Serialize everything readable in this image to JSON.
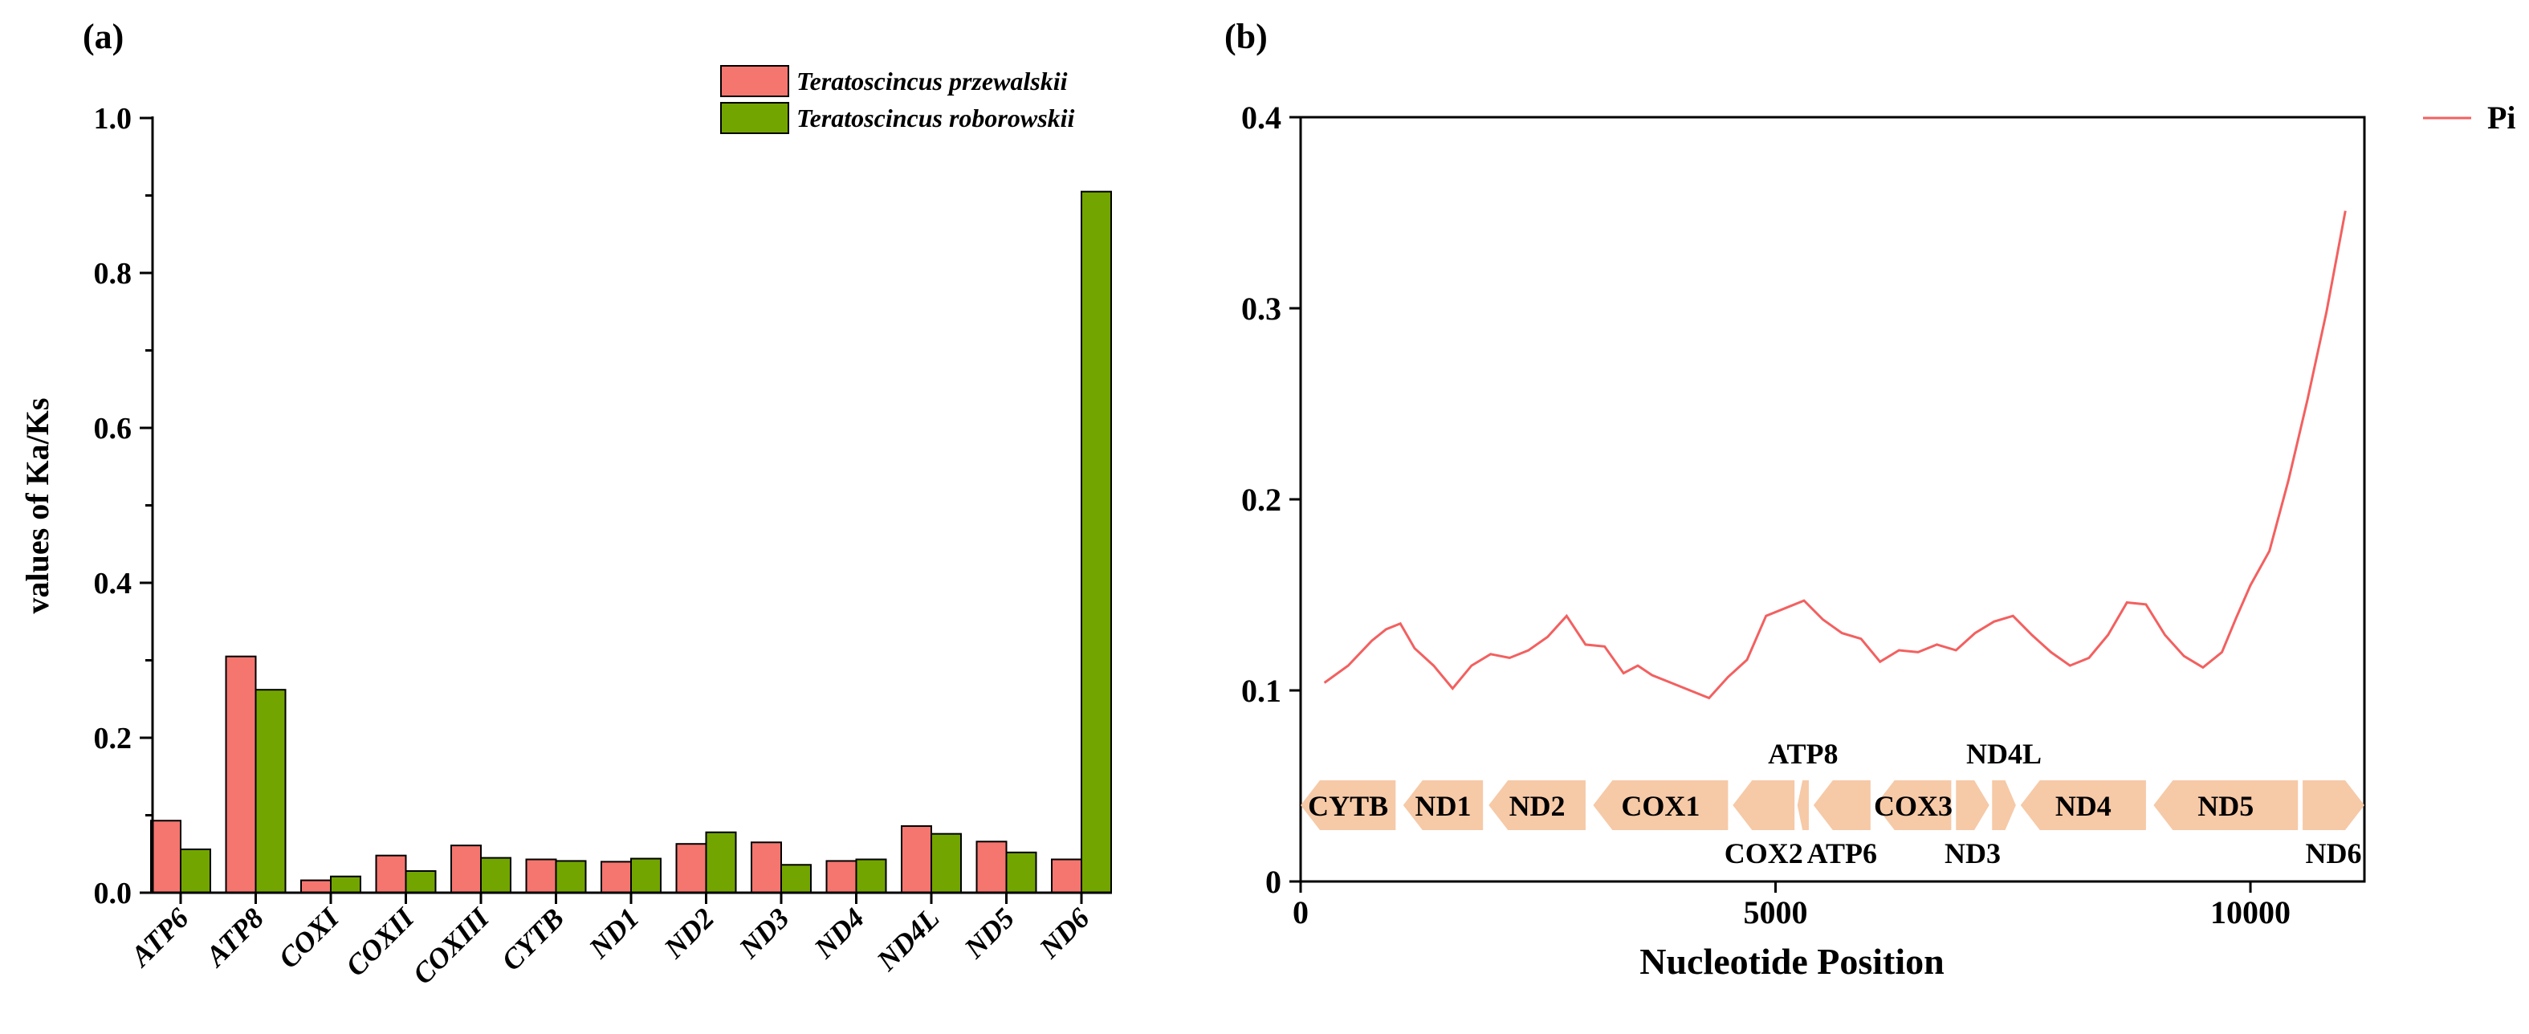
{
  "panel_a_label": "(a)",
  "panel_b_label": "(b)",
  "colors": {
    "series_1": "#F4766F",
    "series_2": "#73A500",
    "pi_line": "#F36060",
    "gene_fill": "#F6C9A7",
    "axis": "#000000"
  },
  "chart_data": [
    {
      "type": "bar",
      "panel": "a",
      "title": "",
      "xlabel": "",
      "ylabel": "values of Ka/Ks",
      "ylim": [
        0,
        1.0
      ],
      "yticks": [
        0.0,
        0.2,
        0.4,
        0.6,
        0.8,
        1.0
      ],
      "ytick_labels": [
        "0.0",
        "0.2",
        "0.4",
        "0.6",
        "0.8",
        "1.0"
      ],
      "categories": [
        "ATP6",
        "ATP8",
        "COXI",
        "COXII",
        "COXIII",
        "CYTB",
        "ND1",
        "ND2",
        "ND3",
        "ND4",
        "ND4L",
        "ND5",
        "ND6"
      ],
      "series": [
        {
          "name": "Teratoscincus przewalskii",
          "color": "#F4766F",
          "values": [
            0.093,
            0.305,
            0.016,
            0.048,
            0.061,
            0.043,
            0.04,
            0.063,
            0.065,
            0.041,
            0.086,
            0.066,
            0.043
          ]
        },
        {
          "name": "Teratoscincus roborowskii",
          "color": "#73A500",
          "values": [
            0.056,
            0.262,
            0.021,
            0.028,
            0.045,
            0.041,
            0.044,
            0.078,
            0.036,
            0.043,
            0.076,
            0.052,
            0.905
          ]
        }
      ],
      "legend_position": "top-right",
      "grid": false
    },
    {
      "type": "line",
      "panel": "b",
      "title": "",
      "xlabel": "Nucleotide Position",
      "ylabel": "",
      "xlim": [
        0,
        11200
      ],
      "ylim": [
        0,
        0.4
      ],
      "xticks": [
        0,
        5000,
        10000
      ],
      "xtick_labels": [
        "0",
        "5000",
        "10000"
      ],
      "yticks": [
        0,
        0.1,
        0.2,
        0.3,
        0.4
      ],
      "ytick_labels": [
        "0",
        "0.1",
        "0.2",
        "0.3",
        "0.4"
      ],
      "legend_position": "top-right",
      "grid": false,
      "series": [
        {
          "name": "Pi",
          "color": "#F36060",
          "x": [
            250,
            500,
            750,
            900,
            1050,
            1200,
            1400,
            1600,
            1800,
            2000,
            2200,
            2400,
            2600,
            2800,
            3000,
            3200,
            3400,
            3550,
            3700,
            3900,
            4100,
            4300,
            4500,
            4700,
            4900,
            5100,
            5300,
            5500,
            5700,
            5900,
            6100,
            6300,
            6500,
            6700,
            6900,
            7100,
            7300,
            7500,
            7700,
            7900,
            8100,
            8300,
            8500,
            8700,
            8900,
            9100,
            9300,
            9500,
            9700,
            9850,
            10000,
            10200,
            10400,
            10600,
            10800,
            11000
          ],
          "y": [
            0.104,
            0.113,
            0.126,
            0.132,
            0.135,
            0.122,
            0.113,
            0.101,
            0.113,
            0.119,
            0.117,
            0.121,
            0.128,
            0.139,
            0.124,
            0.123,
            0.109,
            0.113,
            0.108,
            0.104,
            0.1,
            0.096,
            0.107,
            0.116,
            0.139,
            0.143,
            0.147,
            0.137,
            0.13,
            0.127,
            0.115,
            0.121,
            0.12,
            0.124,
            0.121,
            0.13,
            0.136,
            0.139,
            0.129,
            0.12,
            0.113,
            0.117,
            0.129,
            0.146,
            0.145,
            0.129,
            0.118,
            0.112,
            0.12,
            0.138,
            0.155,
            0.173,
            0.21,
            0.252,
            0.298,
            0.351
          ]
        }
      ],
      "gene_map": [
        {
          "label": "CYTB",
          "start": 0,
          "end": 1000,
          "direction": "left",
          "label_pos": "inside"
        },
        {
          "label": "ND1",
          "start": 1080,
          "end": 1920,
          "direction": "left",
          "label_pos": "inside"
        },
        {
          "label": "ND2",
          "start": 1980,
          "end": 3000,
          "direction": "left",
          "label_pos": "inside"
        },
        {
          "label": "COX1",
          "start": 3080,
          "end": 4500,
          "direction": "left",
          "label_pos": "inside"
        },
        {
          "label": "COX2",
          "start": 4550,
          "end": 5200,
          "direction": "left",
          "label_pos": "below"
        },
        {
          "label": "ATP8",
          "start": 5230,
          "end": 5350,
          "direction": "left",
          "label_pos": "above"
        },
        {
          "label": "ATP6",
          "start": 5400,
          "end": 6000,
          "direction": "left",
          "label_pos": "below"
        },
        {
          "label": "COX3",
          "start": 6050,
          "end": 6850,
          "direction": "left",
          "label_pos": "inside"
        },
        {
          "label": "ND3",
          "start": 6900,
          "end": 7250,
          "direction": "right",
          "label_pos": "below"
        },
        {
          "label": "ND4L",
          "start": 7280,
          "end": 7530,
          "direction": "right",
          "label_pos": "above"
        },
        {
          "label": "ND4",
          "start": 7580,
          "end": 8900,
          "direction": "left",
          "label_pos": "inside"
        },
        {
          "label": "ND5",
          "start": 8980,
          "end": 10500,
          "direction": "left",
          "label_pos": "inside"
        },
        {
          "label": "ND6",
          "start": 10550,
          "end": 11200,
          "direction": "right",
          "label_pos": "below"
        }
      ]
    }
  ]
}
